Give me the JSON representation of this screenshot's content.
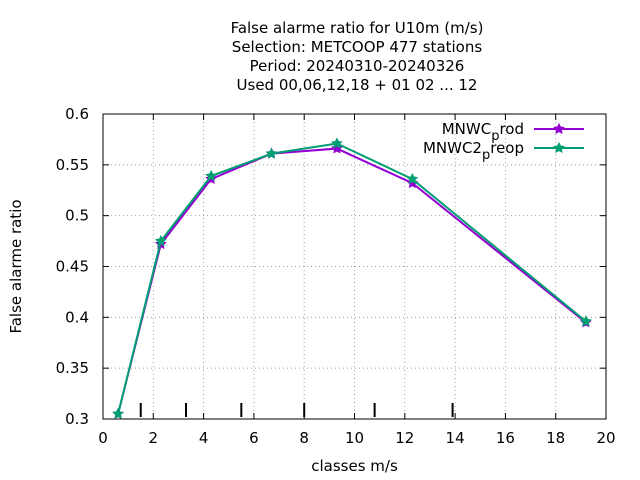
{
  "chart_data": {
    "type": "line",
    "title_lines": [
      "False alarme ratio  for U10m (m/s)",
      "Selection: METCOOP    477 stations",
      "Period: 20240310-20240326",
      "Used  00,06,12,18 + 01 02 ... 12"
    ],
    "xlabel": "classes m/s",
    "ylabel": "False alarme ratio",
    "xlim": [
      0,
      20
    ],
    "ylim": [
      0.3,
      0.6
    ],
    "xticks": [
      0,
      2,
      4,
      6,
      8,
      10,
      12,
      14,
      16,
      18,
      20
    ],
    "yticks": [
      0.3,
      0.35,
      0.4,
      0.45,
      0.5,
      0.55,
      0.6
    ],
    "grid": true,
    "legend_position": "top-right",
    "class_boundary_marks": [
      1.5,
      3.3,
      5.5,
      8.0,
      10.8,
      13.9
    ],
    "series": [
      {
        "name": "MNWC_prod",
        "label_main": "MNWC",
        "label_sub": "p",
        "label_rest": "rod",
        "color": "#9400d3",
        "marker": "star",
        "x": [
          0.6,
          2.3,
          4.3,
          6.7,
          9.3,
          12.3,
          19.2
        ],
        "y": [
          0.305,
          0.472,
          0.536,
          0.561,
          0.566,
          0.532,
          0.395
        ]
      },
      {
        "name": "MNWC2_preop",
        "label_main": "MNWC2",
        "label_sub": "p",
        "label_rest": "reop",
        "color": "#009e73",
        "marker": "star",
        "x": [
          0.6,
          2.3,
          4.3,
          6.7,
          9.3,
          12.3,
          19.2
        ],
        "y": [
          0.305,
          0.475,
          0.539,
          0.561,
          0.571,
          0.536,
          0.396
        ]
      }
    ]
  }
}
